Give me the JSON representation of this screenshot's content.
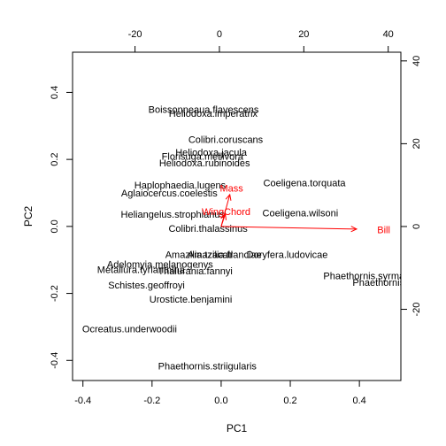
{
  "chart_data": {
    "type": "scatter",
    "subtype": "biplot",
    "xlabel": "PC1",
    "ylabel": "PC2",
    "xlim": [
      -0.43,
      0.52
    ],
    "ylim": [
      -0.46,
      0.52
    ],
    "x_ticks": [
      -0.4,
      -0.2,
      0.0,
      0.2,
      0.4
    ],
    "x_tick_labels": [
      "-0.4",
      "-0.2",
      "0.0",
      "0.2",
      "0.4"
    ],
    "y_ticks": [
      -0.4,
      -0.2,
      0.0,
      0.2,
      0.4
    ],
    "y_tick_labels": [
      "-0.4",
      "-0.2",
      "0.0",
      "0.2",
      "0.4"
    ],
    "secondary_xlim": [
      -34.8,
      43.0
    ],
    "secondary_ylim": [
      -37.2,
      42.1
    ],
    "secondary_x_ticks": [
      -20,
      0,
      20,
      40
    ],
    "secondary_x_tick_labels": [
      "-20",
      "0",
      "20",
      "40"
    ],
    "secondary_y_ticks": [
      -20,
      0,
      20,
      40
    ],
    "secondary_y_tick_labels": [
      "-20",
      "0",
      "20",
      "40"
    ],
    "sample_color": "#000000",
    "variable_color": "#ff0000",
    "samples": [
      {
        "name": "Boissonneaua.flavescens",
        "x": -0.051,
        "y": 0.35
      },
      {
        "name": "Heliodoxa.imperatrix",
        "x": -0.023,
        "y": 0.338
      },
      {
        "name": "Colibri.coruscans",
        "x": 0.013,
        "y": 0.26
      },
      {
        "name": "Heliodoxa.jacula",
        "x": -0.029,
        "y": 0.222
      },
      {
        "name": "Florisuga.mellivora",
        "x": -0.054,
        "y": 0.21
      },
      {
        "name": "Heliodoxa.rubinoides",
        "x": -0.048,
        "y": 0.19
      },
      {
        "name": "Coeligena.torquata",
        "x": 0.241,
        "y": 0.13
      },
      {
        "name": "Haplophaedia.lugens",
        "x": -0.119,
        "y": 0.124
      },
      {
        "name": "Aglaiocercus.coelestis",
        "x": -0.15,
        "y": 0.1
      },
      {
        "name": "Coeligena.wilsoni",
        "x": 0.229,
        "y": 0.04
      },
      {
        "name": "Heliangelus.strophianus",
        "x": -0.14,
        "y": 0.036
      },
      {
        "name": "Colibri.thalassinus",
        "x": -0.038,
        "y": -0.005
      },
      {
        "name": "Amazilia.tzacatl",
        "x": -0.064,
        "y": -0.083
      },
      {
        "name": "Amazilia.franciae",
        "x": 0.01,
        "y": -0.083
      },
      {
        "name": "Doryfera.ludovicae",
        "x": 0.191,
        "y": -0.083
      },
      {
        "name": "Adelomyia.melanogenys",
        "x": -0.177,
        "y": -0.113
      },
      {
        "name": "Metallura.tyrianthina",
        "x": -0.232,
        "y": -0.128
      },
      {
        "name": "Thalurania.fannyi",
        "x": -0.075,
        "y": -0.132
      },
      {
        "name": "Phaethornis.syrmatophorus",
        "x": 0.468,
        "y": -0.147
      },
      {
        "name": "Phaethornis.guy",
        "x": 0.482,
        "y": -0.167
      },
      {
        "name": "Schistes.geoffroyi",
        "x": -0.216,
        "y": -0.175
      },
      {
        "name": "Urosticte.benjamini",
        "x": -0.088,
        "y": -0.217
      },
      {
        "name": "Ocreatus.underwoodii",
        "x": -0.265,
        "y": -0.306
      },
      {
        "name": "Phaethornis.striigularis",
        "x": -0.04,
        "y": -0.416
      }
    ],
    "variables": [
      {
        "name": "Mass",
        "x": 0.025,
        "y": 0.095
      },
      {
        "name": "WingChord",
        "x": 0.012,
        "y": 0.037
      },
      {
        "name": "Bill",
        "x": 0.392,
        "y": -0.008
      }
    ]
  }
}
